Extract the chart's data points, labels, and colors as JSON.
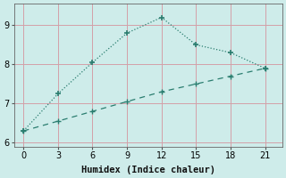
{
  "line1_x": [
    0,
    3,
    6,
    9,
    12,
    15,
    18,
    21
  ],
  "line1_y": [
    6.3,
    7.25,
    8.05,
    8.8,
    9.2,
    8.5,
    8.3,
    7.9
  ],
  "line2_x": [
    0,
    3,
    6,
    9,
    12,
    15,
    18,
    21
  ],
  "line2_y": [
    6.3,
    6.55,
    6.8,
    7.05,
    7.3,
    7.5,
    7.7,
    7.9
  ],
  "line_color": "#2a7d6f",
  "xlabel": "Humidex (Indice chaleur)",
  "ylim": [
    5.9,
    9.55
  ],
  "xlim": [
    -0.8,
    22.5
  ],
  "xticks": [
    0,
    3,
    6,
    9,
    12,
    15,
    18,
    21
  ],
  "yticks": [
    6,
    7,
    8,
    9
  ],
  "bg_color": "#ceecea",
  "grid_color": "#d4a0a8",
  "xlabel_fontsize": 7.5
}
